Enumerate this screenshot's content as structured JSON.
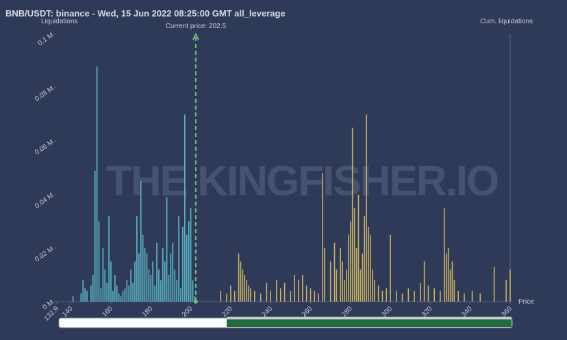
{
  "chart_data": {
    "type": "bar",
    "title": "BNB/USDT: binance - Wed, 15 Jun 2022 08:25:00 GMT all_leverage",
    "y_label": "Liquidations",
    "y2_label": "Cum. liquidations",
    "x_label": "Price",
    "watermark": "THE KINGFISHER.IO",
    "current_price": {
      "value": 202.5,
      "label": "Current price: 202.5"
    },
    "xlim": [
      132.9,
      360
    ],
    "xticks": [
      132.9,
      140,
      160,
      180,
      200,
      220,
      240,
      260,
      280,
      300,
      320,
      340,
      360
    ],
    "ylim": [
      0,
      0.1
    ],
    "yticks": [
      {
        "value": 0,
        "label": "0 M"
      },
      {
        "value": 0.02,
        "label": "0.02 M"
      },
      {
        "value": 0.04,
        "label": "0.04 M"
      },
      {
        "value": 0.06,
        "label": "0.06 M"
      },
      {
        "value": 0.08,
        "label": "0.08 M"
      },
      {
        "value": 0.1,
        "label": "0.1 M"
      }
    ],
    "series": [
      {
        "color": "#5bbccc",
        "x": [
          141,
          145,
          146,
          147,
          148,
          150,
          151,
          152,
          153,
          154,
          155,
          156,
          157,
          158,
          159,
          160,
          161,
          162,
          163,
          164,
          165,
          166,
          167,
          168,
          169,
          170,
          171,
          172,
          173,
          174,
          175,
          176,
          177,
          178,
          179,
          180,
          181,
          182,
          183,
          184,
          185,
          186,
          187,
          188,
          189,
          190,
          191,
          192,
          193,
          194,
          195,
          196,
          197,
          198,
          199,
          200,
          201,
          202
        ],
        "values": [
          0.002,
          0.003,
          0.008,
          0.005,
          0.004,
          0.006,
          0.01,
          0.049,
          0.088,
          0.03,
          0.005,
          0.02,
          0.012,
          0.007,
          0.032,
          0.015,
          0.004,
          0.01,
          0.006,
          0.003,
          0.002,
          0.004,
          0.005,
          0.008,
          0.006,
          0.012,
          0.007,
          0.015,
          0.032,
          0.018,
          0.045,
          0.025,
          0.02,
          0.018,
          0.012,
          0.01,
          0.015,
          0.006,
          0.022,
          0.012,
          0.008,
          0.02,
          0.015,
          0.039,
          0.01,
          0.018,
          0.022,
          0.012,
          0.008,
          0.032,
          0.005,
          0.028,
          0.07,
          0.025,
          0.03,
          0.035,
          0.008,
          0.002
        ]
      },
      {
        "color": "#c9b35e",
        "x": [
          215,
          218,
          220,
          222,
          224,
          225,
          226,
          227,
          228,
          229,
          230,
          232,
          235,
          238,
          240,
          243,
          245,
          247,
          250,
          252,
          254,
          256,
          258,
          260,
          262,
          264,
          266,
          267,
          270,
          272,
          273,
          275,
          276,
          277,
          278,
          279,
          280,
          281,
          282,
          283,
          284,
          285,
          286,
          287,
          288,
          289,
          290,
          291,
          292,
          294,
          296,
          298,
          300,
          303,
          306,
          309,
          312,
          315,
          317,
          319,
          322,
          325,
          327,
          328,
          329,
          330,
          331,
          332,
          334,
          337,
          341,
          345,
          352,
          358,
          360
        ],
        "values": [
          0.004,
          0.003,
          0.006,
          0.004,
          0.018,
          0.015,
          0.012,
          0.01,
          0.008,
          0.006,
          0.005,
          0.004,
          0.003,
          0.007,
          0.004,
          0.008,
          0.005,
          0.007,
          0.004,
          0.01,
          0.008,
          0.01,
          0.006,
          0.005,
          0.004,
          0.003,
          0.048,
          0.02,
          0.015,
          0.022,
          0.012,
          0.02,
          0.015,
          0.008,
          0.012,
          0.025,
          0.03,
          0.065,
          0.035,
          0.02,
          0.04,
          0.012,
          0.018,
          0.032,
          0.07,
          0.028,
          0.025,
          0.012,
          0.008,
          0.006,
          0.004,
          0.005,
          0.025,
          0.004,
          0.003,
          0.005,
          0.004,
          0.007,
          0.015,
          0.006,
          0.005,
          0.004,
          0.035,
          0.018,
          0.02,
          0.012,
          0.015,
          0.008,
          0.004,
          0.003,
          0.004,
          0.003,
          0.013,
          0.008,
          0.012
        ]
      }
    ]
  }
}
